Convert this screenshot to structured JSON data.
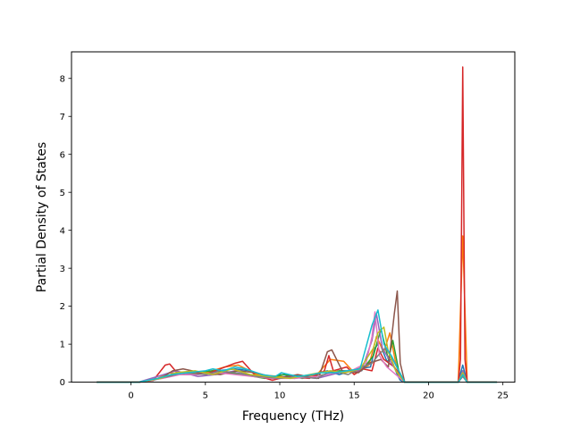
{
  "chart_data": {
    "type": "line",
    "title": "",
    "xlabel": "Frequency (THz)",
    "ylabel": "Partial Density of States",
    "xlim": [
      -4,
      25.8
    ],
    "ylim": [
      0,
      8.7
    ],
    "xticks": [
      0,
      5,
      10,
      15,
      20,
      25
    ],
    "yticks": [
      0,
      1,
      2,
      3,
      4,
      5,
      6,
      7,
      8
    ],
    "grid": false,
    "legend": "none",
    "colors": [
      "#1f77b4",
      "#ff7f0e",
      "#2ca02c",
      "#d62728",
      "#9467bd",
      "#8c564b",
      "#e377c2",
      "#7f7f7f",
      "#bcbd22",
      "#17becf"
    ],
    "series": [
      {
        "x": [
          -2.3,
          0.5,
          1.5,
          2.4,
          3.2,
          4.5,
          5.8,
          7.0,
          8.0,
          9.5,
          10.0,
          11.5,
          12.7,
          13.2,
          14.0,
          15.2,
          16.1,
          16.4,
          16.7,
          17.2,
          17.5,
          17.9,
          18.1,
          18.4,
          22.0,
          22.3,
          22.6,
          24.6
        ],
        "y": [
          0,
          0,
          0.05,
          0.15,
          0.2,
          0.2,
          0.3,
          0.35,
          0.3,
          0.1,
          0.2,
          0.15,
          0.25,
          0.3,
          0.2,
          0.35,
          0.4,
          0.9,
          1.05,
          0.55,
          0.6,
          0.2,
          0.05,
          0,
          0,
          0.45,
          0,
          0
        ]
      },
      {
        "x": [
          -2.3,
          0.5,
          1.8,
          2.6,
          3.5,
          5.0,
          6.3,
          7.2,
          8.5,
          10.0,
          11.0,
          12.5,
          13.4,
          14.3,
          15.0,
          16.0,
          16.5,
          17.0,
          17.4,
          17.8,
          18.1,
          18.4,
          22.0,
          22.3,
          22.6,
          24.6
        ],
        "y": [
          0,
          0,
          0.1,
          0.25,
          0.2,
          0.25,
          0.4,
          0.45,
          0.2,
          0.15,
          0.1,
          0.2,
          0.6,
          0.55,
          0.25,
          0.45,
          1.2,
          0.8,
          1.3,
          0.5,
          0.1,
          0,
          0,
          3.85,
          0,
          0
        ]
      },
      {
        "x": [
          -2.3,
          0.5,
          2.0,
          3.0,
          4.0,
          5.5,
          6.5,
          7.5,
          9.0,
          10.3,
          11.5,
          13.0,
          14.0,
          15.5,
          16.3,
          16.8,
          17.3,
          17.6,
          18.0,
          18.4,
          22.0,
          22.3,
          22.6,
          24.6
        ],
        "y": [
          0,
          0,
          0.1,
          0.2,
          0.25,
          0.3,
          0.25,
          0.2,
          0.1,
          0.2,
          0.1,
          0.2,
          0.3,
          0.3,
          0.7,
          1.4,
          0.6,
          1.1,
          0.3,
          0,
          0,
          0.3,
          0,
          0
        ]
      },
      {
        "x": [
          -2.3,
          0.5,
          1.5,
          2.3,
          2.6,
          3.2,
          4.0,
          5.0,
          6.0,
          7.0,
          7.5,
          8.3,
          9.5,
          10.5,
          12.0,
          13.0,
          13.3,
          13.6,
          14.5,
          15.0,
          15.6,
          16.2,
          16.6,
          17.0,
          17.7,
          18.4,
          22.0,
          22.15,
          22.3,
          22.45,
          22.6,
          24.6
        ],
        "y": [
          0,
          0,
          0.05,
          0.45,
          0.48,
          0.2,
          0.3,
          0.2,
          0.35,
          0.5,
          0.55,
          0.2,
          0.05,
          0.15,
          0.1,
          0.3,
          0.7,
          0.3,
          0.4,
          0.2,
          0.35,
          0.3,
          0.9,
          0.6,
          0.4,
          0,
          0,
          0.6,
          8.3,
          0.6,
          0,
          0
        ]
      },
      {
        "x": [
          -2.3,
          0.5,
          2.2,
          3.0,
          4.5,
          5.7,
          7.0,
          8.0,
          9.5,
          11.0,
          12.5,
          13.5,
          14.5,
          15.5,
          16.2,
          16.5,
          16.9,
          17.5,
          18.0,
          18.4,
          22.0,
          22.3,
          22.6,
          24.6
        ],
        "y": [
          0,
          0,
          0.2,
          0.3,
          0.15,
          0.2,
          0.3,
          0.2,
          0.1,
          0.15,
          0.1,
          0.2,
          0.3,
          0.3,
          1.1,
          1.8,
          0.9,
          0.5,
          0.2,
          0,
          0,
          0.3,
          0,
          0
        ]
      },
      {
        "x": [
          -2.3,
          0.5,
          2.0,
          2.8,
          3.5,
          4.7,
          6.0,
          7.2,
          8.4,
          9.8,
          11.2,
          12.6,
          13.2,
          13.5,
          14.2,
          15.3,
          16.0,
          16.8,
          17.3,
          17.7,
          17.9,
          18.1,
          18.4,
          22.0,
          22.3,
          22.6,
          24.6
        ],
        "y": [
          0,
          0,
          0.1,
          0.3,
          0.35,
          0.25,
          0.2,
          0.3,
          0.25,
          0.1,
          0.2,
          0.1,
          0.8,
          0.85,
          0.3,
          0.25,
          0.5,
          0.6,
          0.4,
          1.8,
          2.4,
          0.5,
          0,
          0,
          0.2,
          0,
          0
        ]
      },
      {
        "x": [
          -2.3,
          0.5,
          2.1,
          3.3,
          4.5,
          5.8,
          7.0,
          8.2,
          9.5,
          11.0,
          12.5,
          13.7,
          14.8,
          15.8,
          16.2,
          16.4,
          16.7,
          17.2,
          17.8,
          18.4,
          22.0,
          22.3,
          22.6,
          24.6
        ],
        "y": [
          0,
          0,
          0.1,
          0.2,
          0.2,
          0.25,
          0.2,
          0.15,
          0.1,
          0.1,
          0.15,
          0.25,
          0.3,
          0.5,
          1.2,
          1.85,
          0.7,
          0.4,
          0.2,
          0,
          0,
          0.2,
          0,
          0
        ]
      },
      {
        "x": [
          -2.3,
          0.5,
          2.5,
          3.5,
          5.0,
          6.0,
          7.0,
          8.5,
          10.0,
          11.3,
          12.5,
          13.5,
          14.6,
          15.5,
          16.2,
          16.6,
          17.1,
          17.6,
          18.0,
          18.4,
          22.0,
          22.3,
          22.6,
          24.6
        ],
        "y": [
          0,
          0,
          0.15,
          0.25,
          0.2,
          0.3,
          0.25,
          0.15,
          0.1,
          0.15,
          0.1,
          0.3,
          0.2,
          0.4,
          0.5,
          0.7,
          0.9,
          0.6,
          0.3,
          0,
          0,
          0.15,
          0,
          0
        ]
      },
      {
        "x": [
          -2.3,
          0.5,
          2.0,
          3.0,
          4.3,
          5.5,
          6.8,
          8.0,
          9.3,
          10.7,
          12.0,
          13.4,
          14.4,
          15.4,
          16.3,
          16.6,
          17.0,
          17.3,
          17.8,
          18.4,
          22.0,
          22.3,
          22.6,
          24.6
        ],
        "y": [
          0,
          0,
          0.1,
          0.25,
          0.3,
          0.2,
          0.35,
          0.2,
          0.15,
          0.1,
          0.2,
          0.3,
          0.25,
          0.35,
          0.9,
          1.3,
          1.45,
          0.8,
          0.3,
          0,
          0,
          0.25,
          0,
          0
        ]
      },
      {
        "x": [
          -2.3,
          0.5,
          1.8,
          2.7,
          3.8,
          5.0,
          5.5,
          6.2,
          7.0,
          7.7,
          8.8,
          9.7,
          10.1,
          11.2,
          12.2,
          12.8,
          13.7,
          14.5,
          15.4,
          16.2,
          16.6,
          17.0,
          17.5,
          18.0,
          18.4,
          22.0,
          22.3,
          22.6,
          24.6
        ],
        "y": [
          0,
          0,
          0.1,
          0.2,
          0.25,
          0.3,
          0.35,
          0.3,
          0.4,
          0.35,
          0.2,
          0.15,
          0.25,
          0.15,
          0.2,
          0.25,
          0.25,
          0.3,
          0.35,
          1.5,
          1.9,
          1.0,
          0.7,
          0.3,
          0,
          0,
          0.2,
          0,
          0
        ]
      }
    ]
  }
}
